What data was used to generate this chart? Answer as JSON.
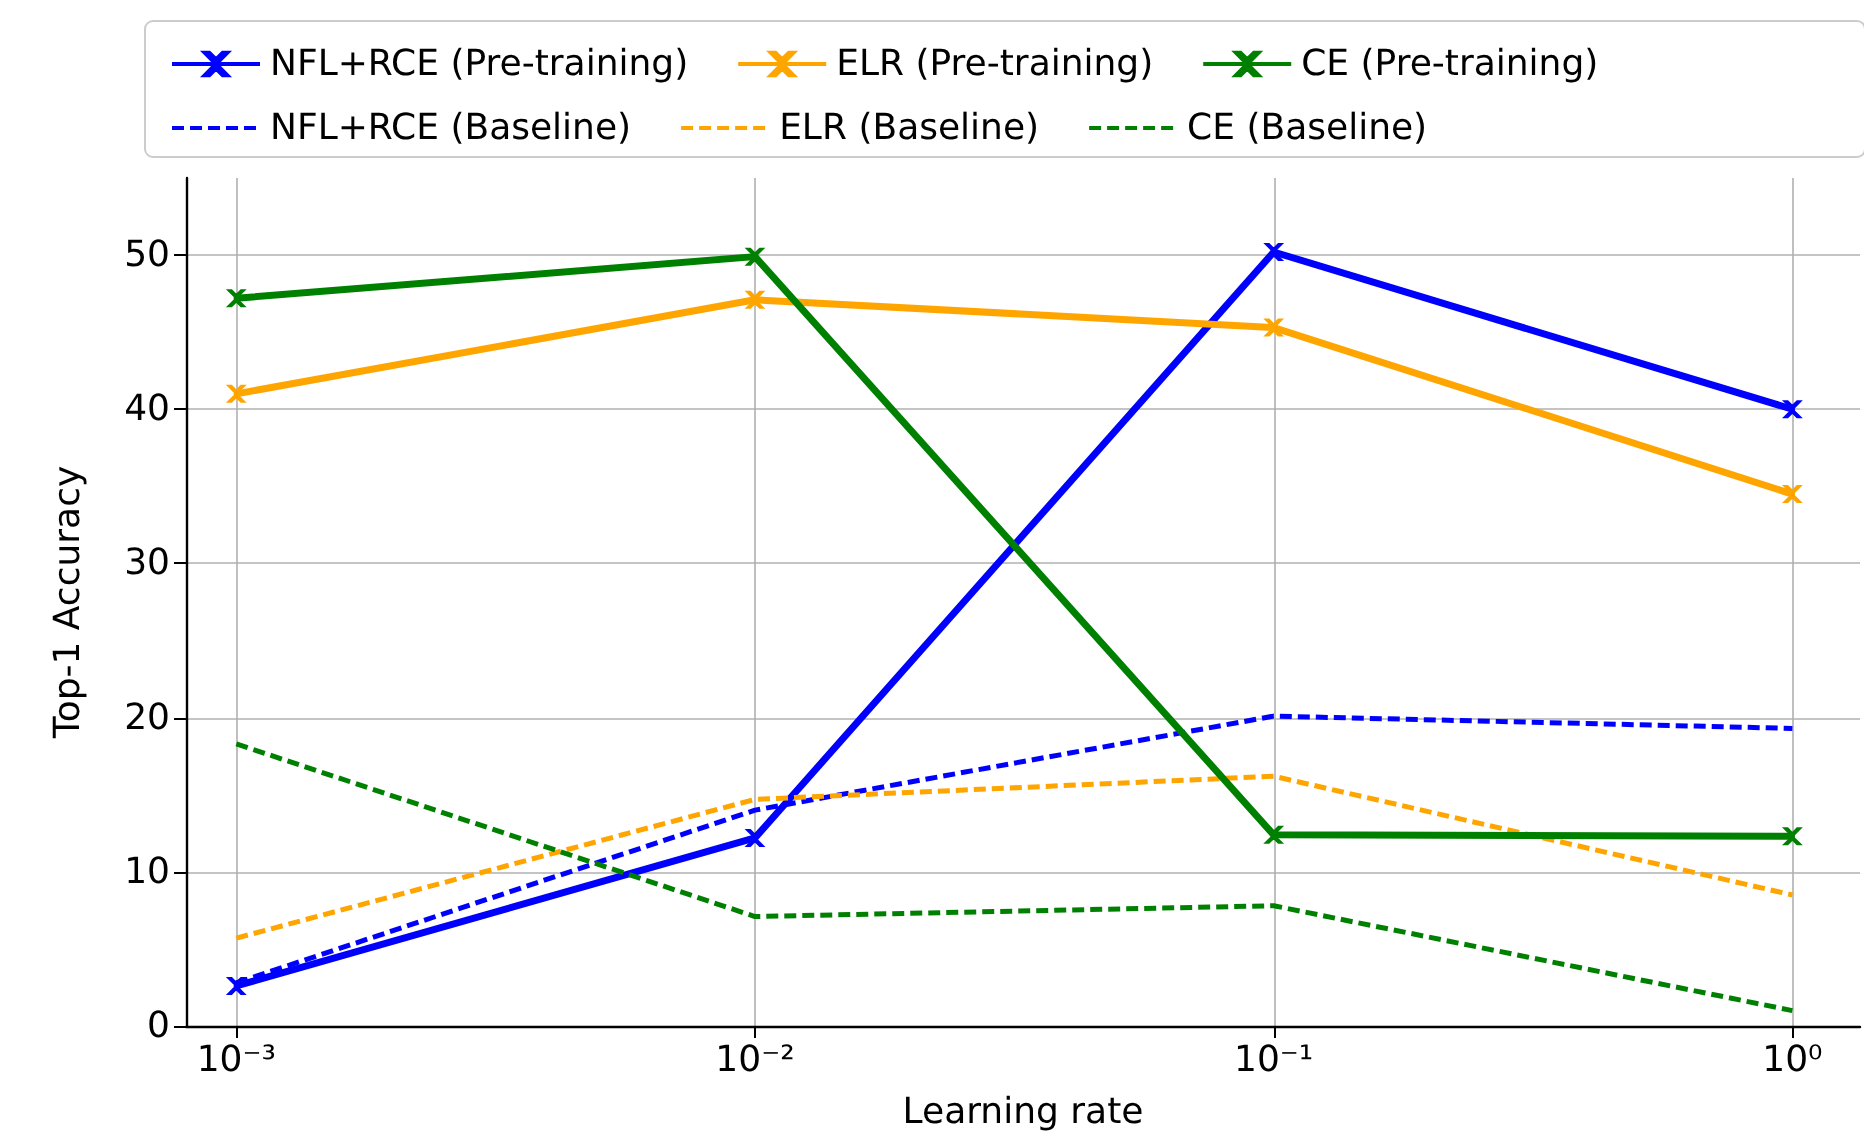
{
  "chart_data": {
    "type": "line",
    "xlabel": "Learning rate",
    "ylabel": "Top-1 Accuracy",
    "x": [
      0.001,
      0.01,
      0.1,
      1
    ],
    "log": "x",
    "xlim": [
      0.0008,
      1.35
    ],
    "xticks": [
      {
        "value": 0.001,
        "label": "10⁻³"
      },
      {
        "value": 0.01,
        "label": "10⁻²"
      },
      {
        "value": 0.1,
        "label": "10⁻¹"
      },
      {
        "value": 1,
        "label": "10⁰"
      }
    ],
    "ylim": [
      0,
      55
    ],
    "yticks": [
      0,
      10,
      20,
      30,
      40,
      50
    ],
    "grid": true,
    "legend": "top",
    "series": [
      {
        "name": "NFL+RCE (Pre-training)",
        "color": "#0000ff",
        "marker": "cross",
        "line_style": "solid",
        "values": [
          2.6,
          12.2,
          50.2,
          40.0
        ]
      },
      {
        "name": "NFL+RCE (Baseline)",
        "color": "#0000ff",
        "marker": "none",
        "line_style": "dashed",
        "values": [
          2.8,
          14.0,
          20.1,
          19.3
        ]
      },
      {
        "name": "ELR (Pre-training)",
        "color": "#ffa500",
        "marker": "cross",
        "line_style": "solid",
        "values": [
          41.0,
          47.1,
          45.3,
          34.5
        ]
      },
      {
        "name": "ELR (Baseline)",
        "color": "#ffa500",
        "marker": "none",
        "line_style": "dashed",
        "values": [
          5.7,
          14.7,
          16.2,
          8.5
        ]
      },
      {
        "name": "CE (Pre-training)",
        "color": "#008000",
        "marker": "cross",
        "line_style": "solid",
        "values": [
          47.2,
          49.9,
          12.4,
          12.3
        ]
      },
      {
        "name": "CE (Baseline)",
        "color": "#008000",
        "marker": "none",
        "line_style": "dashed",
        "values": [
          18.3,
          7.1,
          7.8,
          1.0
        ]
      }
    ]
  }
}
